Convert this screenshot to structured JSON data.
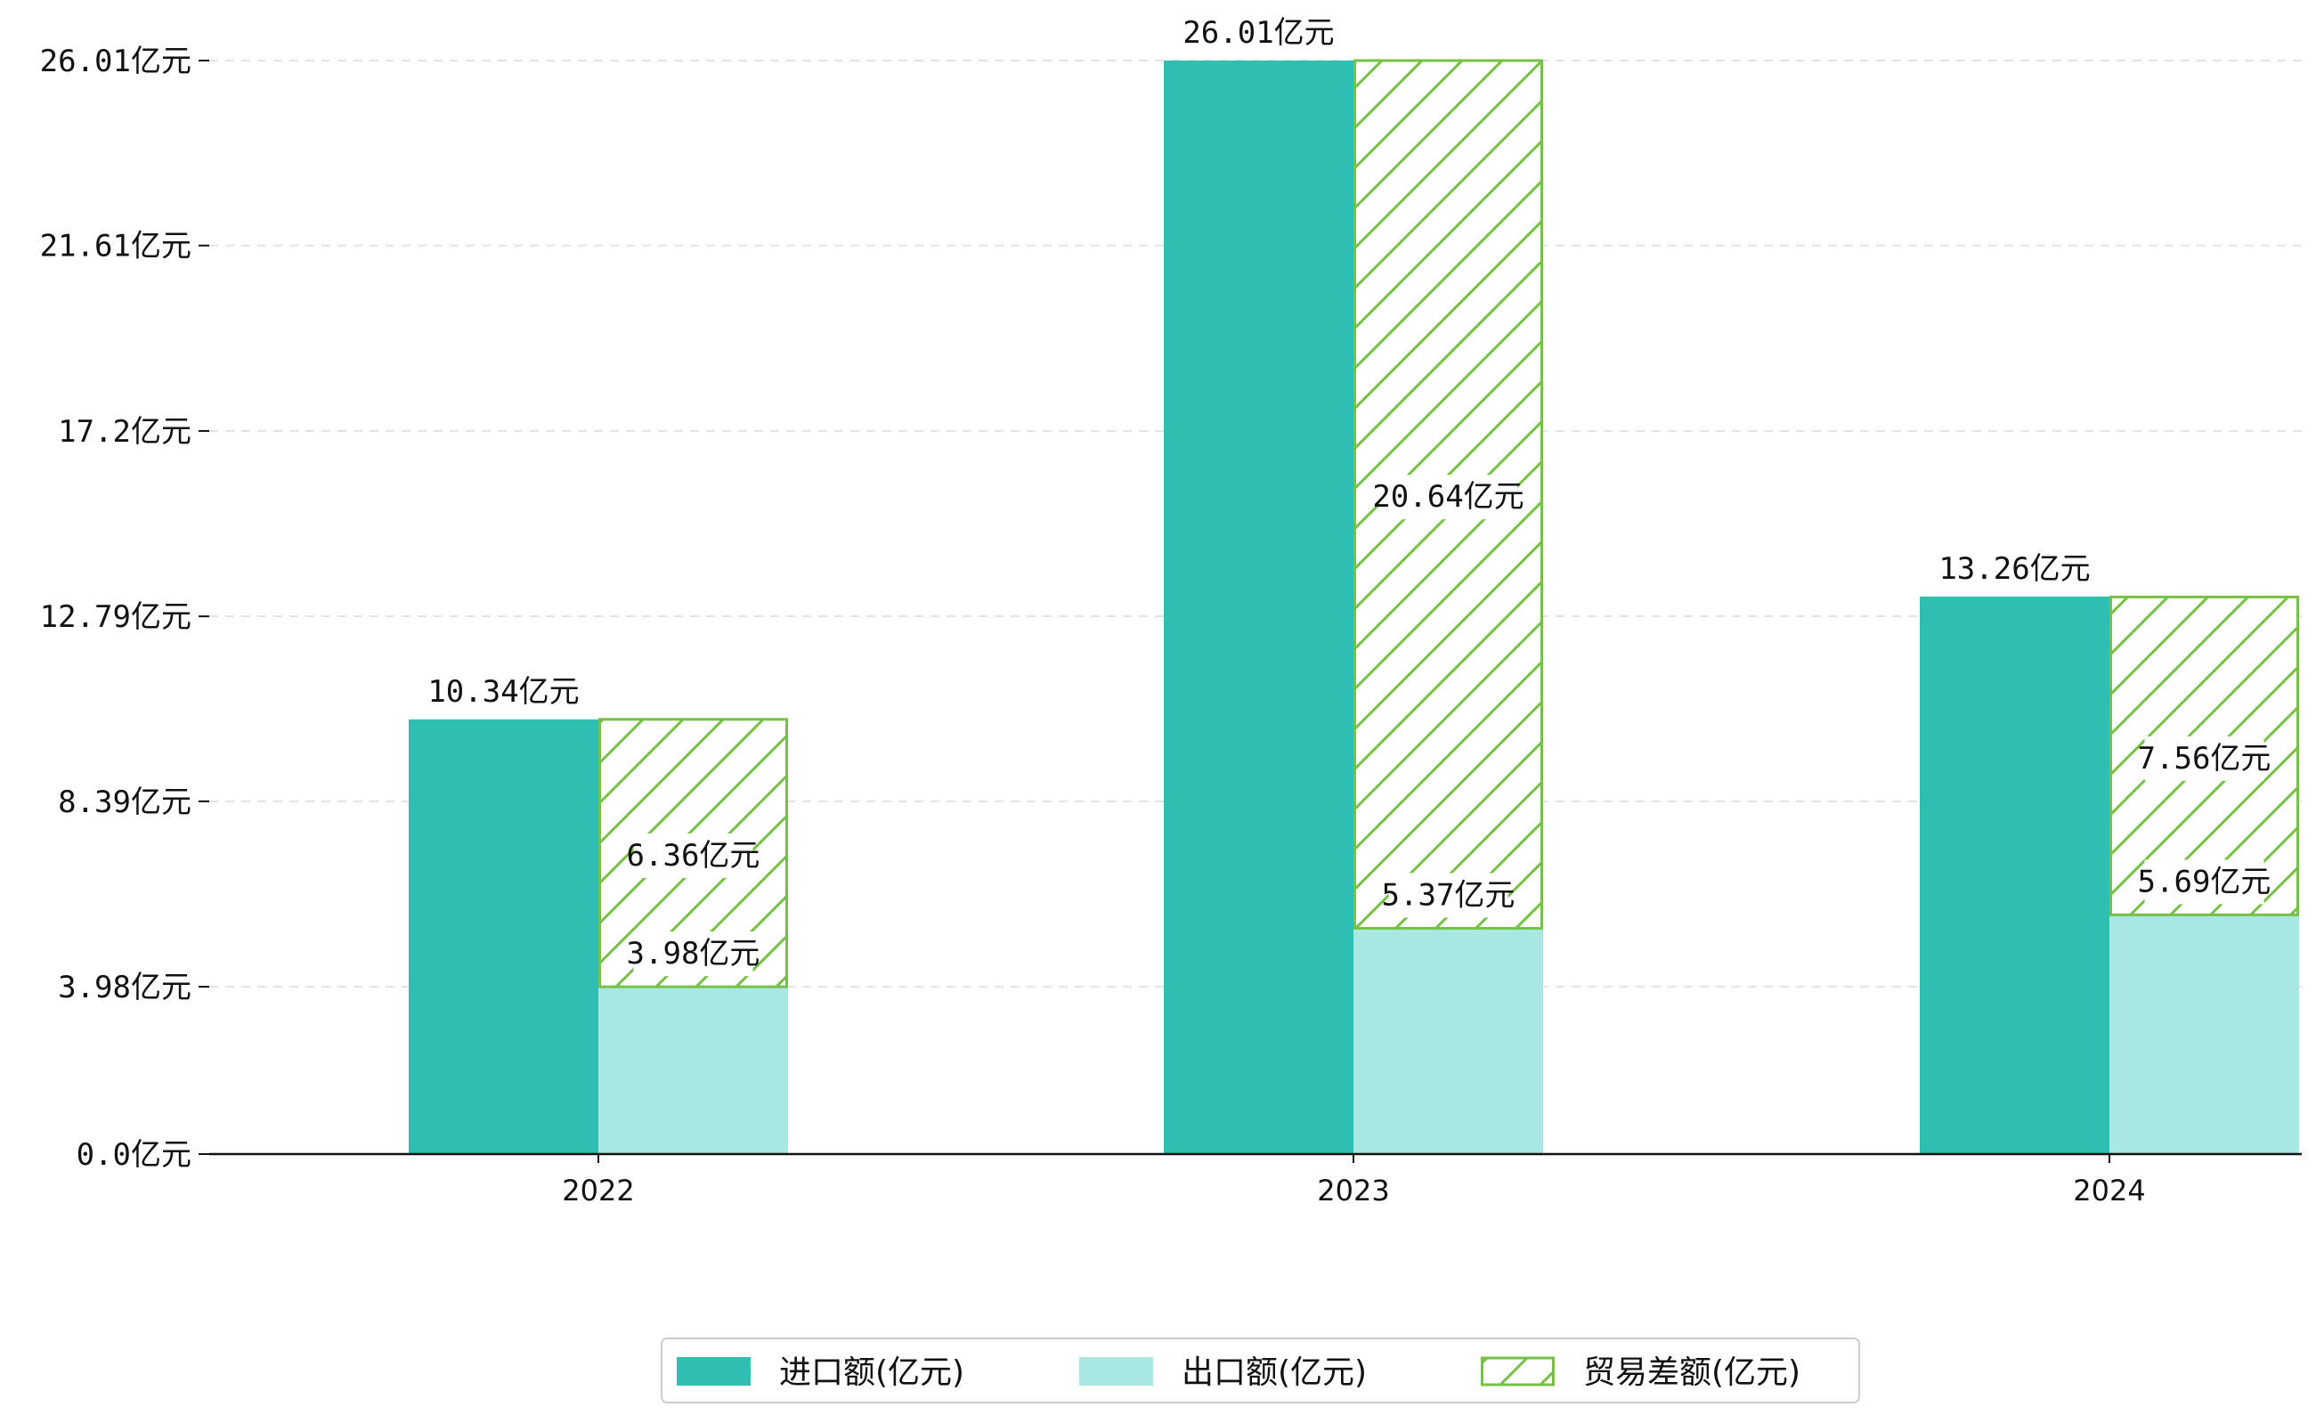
{
  "chart_data": {
    "type": "bar",
    "title": "",
    "xlabel": "",
    "ylabel": "",
    "categories": [
      "2022",
      "2023",
      "2024"
    ],
    "series": [
      {
        "name": "进口额(亿元)",
        "values": [
          10.34,
          26.01,
          13.26
        ],
        "color": "#2EBFB0",
        "style": "solid"
      },
      {
        "name": "出口额(亿元)",
        "values": [
          3.98,
          5.37,
          5.69
        ],
        "color": "#A9E7E2",
        "style": "solid"
      },
      {
        "name": "贸易差额(亿元)",
        "values": [
          6.36,
          20.64,
          7.56
        ],
        "color": "#76C043",
        "style": "hatch",
        "stacked_on": "出口额(亿元)"
      }
    ],
    "data_labels": {
      "import": [
        "10.34亿元",
        "26.01亿元",
        "13.26亿元"
      ],
      "export": [
        "3.98亿元",
        "5.37亿元",
        "5.69亿元"
      ],
      "balance": [
        "6.36亿元",
        "20.64亿元",
        "7.56亿元"
      ]
    },
    "yticks": [
      {
        "value": 0.0,
        "label": "0.0亿元"
      },
      {
        "value": 3.98,
        "label": "3.98亿元"
      },
      {
        "value": 8.39,
        "label": "8.39亿元"
      },
      {
        "value": 12.79,
        "label": "12.79亿元"
      },
      {
        "value": 17.2,
        "label": "17.2亿元"
      },
      {
        "value": 21.61,
        "label": "21.61亿元"
      },
      {
        "value": 26.01,
        "label": "26.01亿元"
      }
    ],
    "ylim": [
      0,
      26.01
    ],
    "grid": true,
    "legend_position": "bottom-center"
  }
}
